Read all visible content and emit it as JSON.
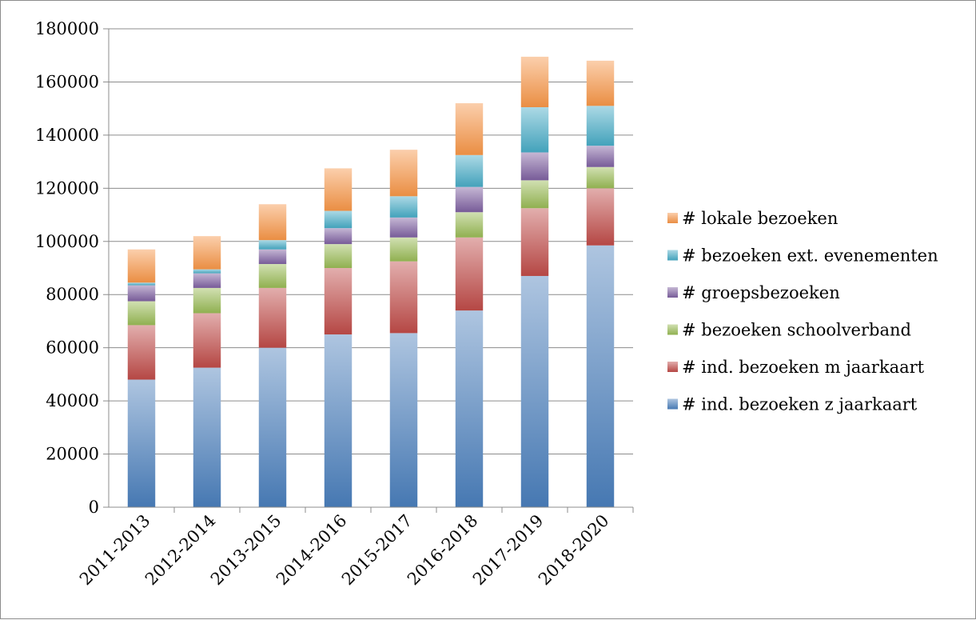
{
  "chart_data": {
    "type": "bar",
    "stacked": true,
    "categories": [
      "2011-2013",
      "2012-2014",
      "2013-2015",
      "2014-2016",
      "2015-2017",
      "2016-2018",
      "2017-2019",
      "2018-2020"
    ],
    "series": [
      {
        "name": "# ind. bezoeken z jaarkaart",
        "color": "#4a7ebb",
        "values": [
          48000,
          52500,
          60000,
          65000,
          65500,
          74000,
          87000,
          98500
        ]
      },
      {
        "name": "# ind. bezoeken m jaarkaart",
        "color": "#be4b48",
        "values": [
          20500,
          20500,
          22500,
          25000,
          27000,
          27500,
          25500,
          21500
        ]
      },
      {
        "name": "# bezoeken schoolverband",
        "color": "#98b954",
        "values": [
          9000,
          9500,
          9000,
          9000,
          9000,
          9500,
          10500,
          8000
        ]
      },
      {
        "name": "# groepsbezoeken",
        "color": "#7d60a0",
        "values": [
          6000,
          5500,
          5500,
          6000,
          7500,
          9500,
          10500,
          8000
        ]
      },
      {
        "name": "# bezoeken ext. evenementen",
        "color": "#46aac5",
        "values": [
          1000,
          1500,
          3500,
          6500,
          8000,
          12000,
          17000,
          15000
        ]
      },
      {
        "name": "# lokale bezoeken",
        "color": "#f69546",
        "values": [
          12500,
          12500,
          13500,
          16000,
          17500,
          19500,
          19000,
          17000
        ]
      }
    ],
    "yticks": [
      "0",
      "20000",
      "40000",
      "60000",
      "80000",
      "100000",
      "120000",
      "140000",
      "160000",
      "180000"
    ],
    "ylim": [
      0,
      180000
    ],
    "grid": true,
    "legend_position": "right"
  }
}
